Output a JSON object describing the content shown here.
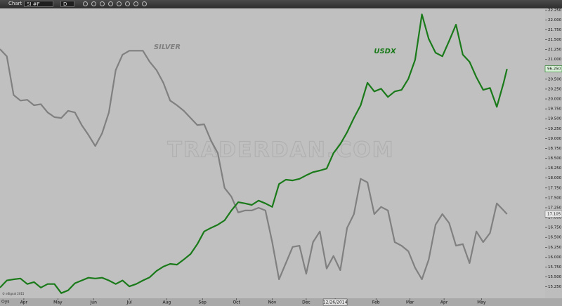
{
  "window": {
    "title": "Chart",
    "symbol": "SI #F",
    "interval": "D"
  },
  "footer": {
    "copyright": "© eSignal 2015",
    "corner": "Oys"
  },
  "chart_data": {
    "type": "line",
    "watermark": "TRADERDAN.COM",
    "x": [
      0,
      4,
      8,
      12,
      16,
      20,
      24,
      28,
      32,
      36,
      40,
      44,
      48,
      52,
      56,
      60,
      64,
      68,
      72,
      76,
      80,
      84,
      88,
      92,
      96,
      100,
      104,
      108,
      112,
      116,
      120,
      124,
      128,
      132,
      136,
      140,
      144,
      148,
      152,
      156,
      160,
      164,
      168,
      172,
      176,
      180,
      184,
      188,
      192,
      196,
      200,
      204,
      208,
      212,
      216,
      220,
      224,
      228,
      232,
      236,
      240,
      244,
      248,
      252,
      256,
      260,
      264,
      268,
      272,
      276,
      280,
      284,
      288,
      292,
      296,
      298
    ],
    "series": [
      {
        "name": "SILVER",
        "color": "#808080",
        "values": [
          21.26,
          21.08,
          20.1,
          19.96,
          19.98,
          19.84,
          19.87,
          19.66,
          19.54,
          19.52,
          19.7,
          19.66,
          19.34,
          19.09,
          18.81,
          19.13,
          19.66,
          20.73,
          21.12,
          21.22,
          21.22,
          21.22,
          20.94,
          20.73,
          20.41,
          19.96,
          19.84,
          19.7,
          19.52,
          19.34,
          19.36,
          18.95,
          18.63,
          17.75,
          17.53,
          17.13,
          17.18,
          17.18,
          17.25,
          17.18,
          16.38,
          15.44,
          15.85,
          16.26,
          16.29,
          15.58,
          16.38,
          16.65,
          15.71,
          16.03,
          15.67,
          16.74,
          17.09,
          17.98,
          17.89,
          17.09,
          17.27,
          17.18,
          16.38,
          16.29,
          16.15,
          15.73,
          15.44,
          15.94,
          16.82,
          17.09,
          16.86,
          16.29,
          16.33,
          15.85,
          16.65,
          16.38,
          16.61,
          17.36,
          17.18,
          17.09
        ],
        "last_label": "17.105"
      },
      {
        "name": "USDX",
        "color": "#1a7a1a",
        "values": [
          15.23,
          15.41,
          15.44,
          15.46,
          15.32,
          15.37,
          15.23,
          15.32,
          15.32,
          15.09,
          15.16,
          15.34,
          15.41,
          15.48,
          15.46,
          15.48,
          15.41,
          15.32,
          15.41,
          15.26,
          15.32,
          15.41,
          15.49,
          15.65,
          15.76,
          15.83,
          15.81,
          15.94,
          16.08,
          16.33,
          16.65,
          16.74,
          16.82,
          16.93,
          17.18,
          17.39,
          17.36,
          17.32,
          17.43,
          17.36,
          17.27,
          17.85,
          17.96,
          17.94,
          17.98,
          18.07,
          18.15,
          18.19,
          18.24,
          18.63,
          18.86,
          19.16,
          19.52,
          19.84,
          20.41,
          20.19,
          20.26,
          20.05,
          20.19,
          20.23,
          20.51,
          20.99,
          22.14,
          21.52,
          21.17,
          21.08,
          21.47,
          21.88,
          21.12,
          20.94,
          20.55,
          20.23,
          20.28,
          19.8,
          20.41,
          20.76
        ],
        "last_label": "96.250"
      }
    ],
    "xlim": [
      0,
      320
    ],
    "xticks": [
      {
        "value": 14,
        "label": "Apr"
      },
      {
        "value": 34,
        "label": "May"
      },
      {
        "value": 55,
        "label": "Jun"
      },
      {
        "value": 76,
        "label": "Jul"
      },
      {
        "value": 98,
        "label": "Aug"
      },
      {
        "value": 119,
        "label": "Sep"
      },
      {
        "value": 139,
        "label": "Oct"
      },
      {
        "value": 160,
        "label": "Nov"
      },
      {
        "value": 180,
        "label": "Dec"
      },
      {
        "value": 197,
        "label": "12/26/2014"
      },
      {
        "value": 221,
        "label": "Feb"
      },
      {
        "value": 241,
        "label": "Mar"
      },
      {
        "value": 261,
        "label": "Apr"
      },
      {
        "value": 283,
        "label": "May"
      }
    ],
    "ylim": [
      14.96,
      22.29
    ],
    "yticks": [
      {
        "value": 15.25,
        "label": "15.250"
      },
      {
        "value": 15.5,
        "label": "15.500"
      },
      {
        "value": 15.75,
        "label": "15.750"
      },
      {
        "value": 16,
        "label": "16.000"
      },
      {
        "value": 16.25,
        "label": "16.250"
      },
      {
        "value": 16.5,
        "label": "16.500"
      },
      {
        "value": 16.75,
        "label": "16.750"
      },
      {
        "value": 17,
        "label": "17.000"
      },
      {
        "value": 17.25,
        "label": "17.250"
      },
      {
        "value": 17.5,
        "label": "17.500"
      },
      {
        "value": 17.75,
        "label": "17.750"
      },
      {
        "value": 18,
        "label": "18.000"
      },
      {
        "value": 18.25,
        "label": "18.250"
      },
      {
        "value": 18.5,
        "label": "18.500"
      },
      {
        "value": 18.75,
        "label": "18.750"
      },
      {
        "value": 19,
        "label": "19.000"
      },
      {
        "value": 19.25,
        "label": "19.250"
      },
      {
        "value": 19.5,
        "label": "19.500"
      },
      {
        "value": 19.75,
        "label": "19.750"
      },
      {
        "value": 20,
        "label": "20.000"
      },
      {
        "value": 20.25,
        "label": "20.250"
      },
      {
        "value": 20.5,
        "label": "20.500"
      },
      {
        "value": 20.75,
        "label": "20.750"
      },
      {
        "value": 21,
        "label": "21.000"
      },
      {
        "value": 21.25,
        "label": "21.250"
      },
      {
        "value": 21.5,
        "label": "21.500"
      },
      {
        "value": 21.75,
        "label": "21.750"
      },
      {
        "value": 22,
        "label": "22.000"
      },
      {
        "value": 22.25,
        "label": "22.250"
      }
    ],
    "grid": false
  }
}
